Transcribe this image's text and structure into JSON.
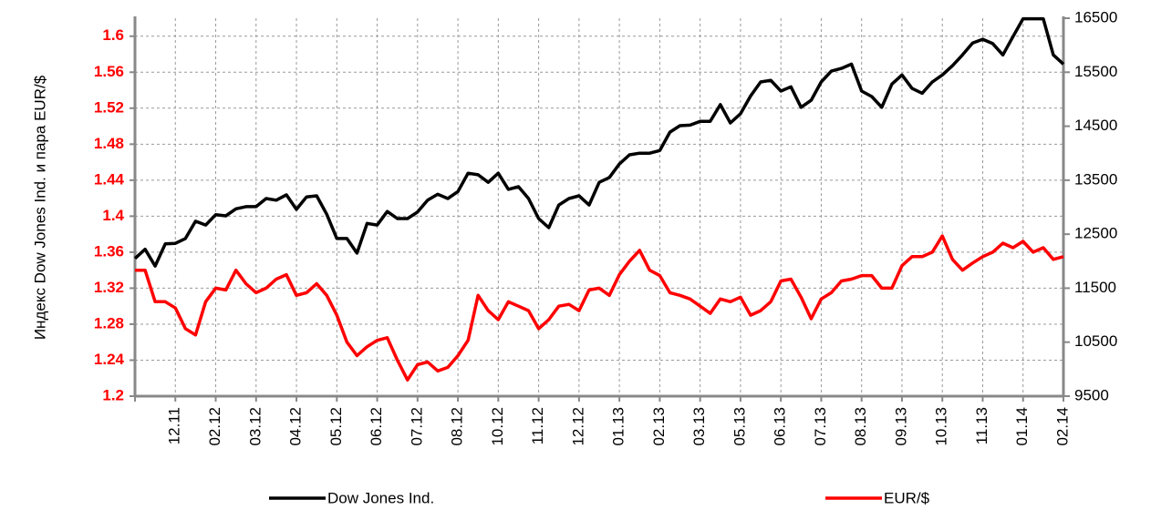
{
  "chart_data": {
    "type": "line",
    "y_label": "Индекс Dow Jones Ind. и пара EUR/$",
    "categories": [
      null,
      null,
      null,
      null,
      "12.11",
      null,
      null,
      null,
      "02.12",
      null,
      null,
      null,
      "03.12",
      null,
      null,
      null,
      "04.12",
      null,
      null,
      null,
      "05.12",
      null,
      null,
      null,
      "06.12",
      null,
      null,
      null,
      "07.12",
      null,
      null,
      null,
      "08.12",
      null,
      null,
      null,
      "10.12",
      null,
      null,
      null,
      "11.12",
      null,
      null,
      null,
      "12.12",
      null,
      null,
      null,
      "01.13",
      null,
      null,
      null,
      "02.13",
      null,
      null,
      null,
      "03.13",
      null,
      null,
      null,
      "05.13",
      null,
      null,
      null,
      "06.13",
      null,
      null,
      null,
      "07.13",
      null,
      null,
      null,
      "08.13",
      null,
      null,
      null,
      "09.13",
      null,
      null,
      null,
      "10.13",
      null,
      null,
      null,
      "11.13",
      null,
      null,
      null,
      "01.14",
      null,
      null,
      null,
      "02.14"
    ],
    "series": [
      {
        "name": "Dow Jones Ind.",
        "color": "#000000",
        "axis": "y2",
        "values": [
          12050,
          12220,
          11910,
          12320,
          12330,
          12420,
          12740,
          12670,
          12860,
          12840,
          12970,
          13010,
          13010,
          13160,
          13130,
          13230,
          12960,
          13190,
          13210,
          12870,
          12420,
          12420,
          12150,
          12700,
          12670,
          12920,
          12790,
          12790,
          12910,
          13130,
          13240,
          13160,
          13290,
          13630,
          13600,
          13460,
          13630,
          13330,
          13380,
          13160,
          12790,
          12620,
          13040,
          13160,
          13210,
          13040,
          13460,
          13550,
          13800,
          13970,
          14000,
          14000,
          14050,
          14390,
          14510,
          14520,
          14590,
          14590,
          14900,
          14560,
          14730,
          15060,
          15320,
          15350,
          15150,
          15230,
          14850,
          14980,
          15320,
          15520,
          15570,
          15650,
          15150,
          15050,
          14850,
          15280,
          15450,
          15200,
          15110,
          15320,
          15450,
          15620,
          15820,
          16040,
          16110,
          16030,
          15820,
          16160,
          16490,
          16490,
          16490,
          15820,
          15650
        ]
      },
      {
        "name": "EUR/$",
        "color": "#ff0000",
        "axis": "y",
        "values": [
          1.34,
          1.34,
          1.305,
          1.305,
          1.298,
          1.275,
          1.268,
          1.305,
          1.32,
          1.318,
          1.34,
          1.325,
          1.315,
          1.32,
          1.33,
          1.335,
          1.312,
          1.315,
          1.325,
          1.312,
          1.29,
          1.26,
          1.245,
          1.255,
          1.262,
          1.265,
          1.24,
          1.218,
          1.235,
          1.238,
          1.228,
          1.232,
          1.245,
          1.262,
          1.312,
          1.295,
          1.285,
          1.305,
          1.3,
          1.295,
          1.275,
          1.285,
          1.3,
          1.302,
          1.295,
          1.318,
          1.32,
          1.312,
          1.335,
          1.35,
          1.362,
          1.34,
          1.334,
          1.315,
          1.312,
          1.308,
          1.3,
          1.292,
          1.308,
          1.305,
          1.31,
          1.29,
          1.295,
          1.305,
          1.328,
          1.33,
          1.31,
          1.286,
          1.308,
          1.315,
          1.328,
          1.33,
          1.334,
          1.334,
          1.32,
          1.32,
          1.345,
          1.355,
          1.355,
          1.36,
          1.378,
          1.352,
          1.34,
          1.348,
          1.355,
          1.36,
          1.37,
          1.365,
          1.372,
          1.36,
          1.365,
          1.352,
          1.355
        ]
      }
    ],
    "ylim": [
      1.2,
      1.62
    ],
    "yticks": [
      1.2,
      1.24,
      1.28,
      1.32,
      1.36,
      1.4,
      1.44,
      1.48,
      1.52,
      1.56,
      1.6
    ],
    "y2lim": [
      9500,
      16500
    ],
    "y2ticks": [
      9500,
      10500,
      11500,
      12500,
      13500,
      14500,
      15500,
      16500
    ],
    "ytick_color": "#ff0000",
    "grid": true
  }
}
